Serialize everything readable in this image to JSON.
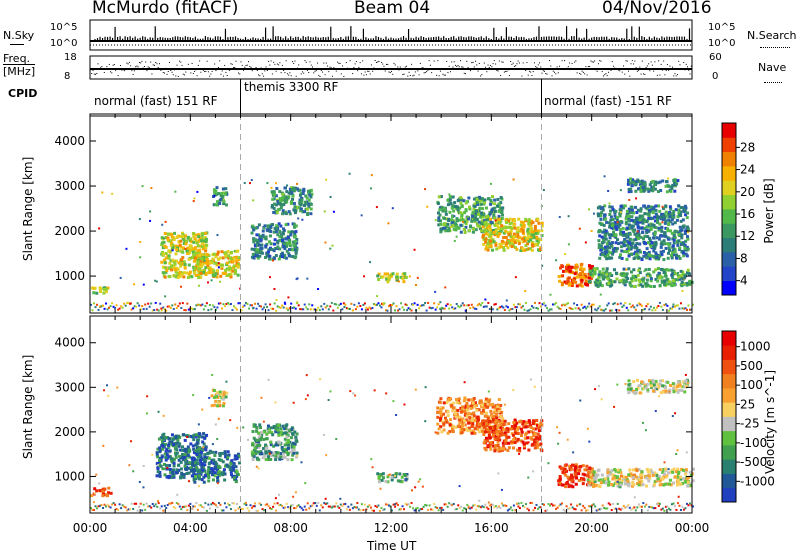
{
  "header": {
    "station": "McMurdo (fitACF)",
    "beam": "Beam 04",
    "date": "04/Nov/2016"
  },
  "top_panels": {
    "nsky_label": "N.Sky",
    "nsky_ticks": [
      "10^5",
      "10^0"
    ],
    "freq_label": "Freq.",
    "freq_unit": "[MHz]",
    "freq_ticks": [
      "18",
      "8"
    ],
    "nsearch_label": "N.Search",
    "nsearch_ticks": [
      "10^5",
      "10^0"
    ],
    "nave_label": "Nave",
    "nave_ticks": [
      "60",
      "0"
    ],
    "cpid_label": "CPID",
    "cpid_segments": [
      {
        "label": "normal (fast) 151 RF",
        "start_h": 0,
        "end_h": 6
      },
      {
        "label": "themis 3300 RF",
        "start_h": 6,
        "end_h": 18
      },
      {
        "label": "normal (fast) -151 RF",
        "start_h": 18,
        "end_h": 24
      }
    ]
  },
  "chart_data": [
    {
      "type": "heatmap",
      "name": "power",
      "ylabel": "Slant Range [km]",
      "xlim": [
        0,
        24
      ],
      "ylim": [
        180,
        4600
      ],
      "yticks": [
        1000,
        2000,
        3000,
        4000
      ],
      "colorbar": {
        "label": "Power [dB]",
        "ticks": [
          "28",
          "24",
          "20",
          "16",
          "12",
          "8",
          "4"
        ],
        "colors": [
          "#0000ff",
          "#2244c8",
          "#2a60a8",
          "#2c7c78",
          "#3a9860",
          "#52b84a",
          "#90d030",
          "#e0d020",
          "#f8b000",
          "#f08000",
          "#f04000",
          "#e80000"
        ]
      },
      "echo_regions": [
        {
          "t": [
            0.0,
            0.8
          ],
          "r": [
            640,
            780
          ],
          "level": 0.55
        },
        {
          "t": [
            2.8,
            4.6
          ],
          "r": [
            1000,
            2000
          ],
          "level": 0.6
        },
        {
          "t": [
            4.1,
            5.9
          ],
          "r": [
            1000,
            1600
          ],
          "level": 0.65
        },
        {
          "t": [
            4.8,
            5.4
          ],
          "r": [
            2600,
            3000
          ],
          "level": 0.35
        },
        {
          "t": [
            6.4,
            8.2
          ],
          "r": [
            1400,
            2200
          ],
          "level": 0.3
        },
        {
          "t": [
            7.2,
            8.8
          ],
          "r": [
            2400,
            3000
          ],
          "level": 0.35
        },
        {
          "t": [
            11.4,
            12.6
          ],
          "r": [
            900,
            1100
          ],
          "level": 0.55
        },
        {
          "t": [
            13.8,
            16.4
          ],
          "r": [
            2000,
            2800
          ],
          "level": 0.4
        },
        {
          "t": [
            15.6,
            18.0
          ],
          "r": [
            1600,
            2300
          ],
          "level": 0.65
        },
        {
          "t": [
            18.6,
            20.0
          ],
          "r": [
            800,
            1300
          ],
          "level": 0.8
        },
        {
          "t": [
            19.8,
            24.0
          ],
          "r": [
            800,
            1200
          ],
          "level": 0.4
        },
        {
          "t": [
            20.2,
            23.8
          ],
          "r": [
            1400,
            2600
          ],
          "level": 0.3
        },
        {
          "t": [
            21.4,
            23.4
          ],
          "r": [
            2900,
            3200
          ],
          "level": 0.3
        }
      ]
    },
    {
      "type": "heatmap",
      "name": "velocity",
      "ylabel": "Slant Range [km]",
      "xlabel": "Time UT",
      "xlim": [
        0,
        24
      ],
      "ylim": [
        180,
        4600
      ],
      "yticks": [
        1000,
        2000,
        3000,
        4000
      ],
      "xticks": [
        "00:00",
        "04:00",
        "08:00",
        "12:00",
        "16:00",
        "20:00",
        "00:00"
      ],
      "colorbar": {
        "label": "Velocity [m s^-1]",
        "ticks": [
          "1000",
          "500",
          "100",
          "25",
          "-25",
          "-100",
          "-500",
          "-1000"
        ],
        "colors": [
          "#2040c0",
          "#205898",
          "#2a8070",
          "#40a050",
          "#60c040",
          "#c0c0c0",
          "#f8d060",
          "#f8a030",
          "#f08020",
          "#f05010",
          "#e82000",
          "#e80000"
        ]
      },
      "echo_regions": [
        {
          "t": [
            0.0,
            0.8
          ],
          "r": [
            600,
            780
          ],
          "level": 0.8
        },
        {
          "t": [
            2.6,
            4.6
          ],
          "r": [
            1000,
            2000
          ],
          "level": 0.15
        },
        {
          "t": [
            4.0,
            5.9
          ],
          "r": [
            900,
            1600
          ],
          "level": 0.18
        },
        {
          "t": [
            4.8,
            5.4
          ],
          "r": [
            2600,
            3000
          ],
          "level": 0.5
        },
        {
          "t": [
            6.4,
            8.2
          ],
          "r": [
            1400,
            2200
          ],
          "level": 0.3
        },
        {
          "t": [
            11.4,
            12.6
          ],
          "r": [
            900,
            1100
          ],
          "level": 0.3
        },
        {
          "t": [
            13.8,
            16.4
          ],
          "r": [
            2000,
            2800
          ],
          "level": 0.7
        },
        {
          "t": [
            15.6,
            18.0
          ],
          "r": [
            1600,
            2300
          ],
          "level": 0.8
        },
        {
          "t": [
            18.6,
            20.0
          ],
          "r": [
            800,
            1300
          ],
          "level": 0.85
        },
        {
          "t": [
            19.8,
            24.0
          ],
          "r": [
            800,
            1200
          ],
          "level": 0.5
        },
        {
          "t": [
            21.4,
            23.8
          ],
          "r": [
            2900,
            3200
          ],
          "level": 0.45
        }
      ]
    }
  ]
}
